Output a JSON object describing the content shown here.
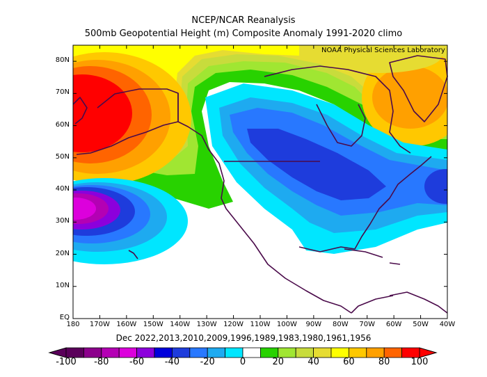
{
  "title": "NCEP/NCAR Reanalysis",
  "subtitle": "500mb Geopotential Height (m) Composite Anomaly 1991-2020 climo",
  "credit": "NOAA Physical Sciences Laboratory",
  "caption": "Dec 2022,2013,2010,2009,1996,1989,1983,1980,1961,1956",
  "lat_ticks": [
    "EQ",
    "10N",
    "20N",
    "30N",
    "40N",
    "50N",
    "60N",
    "70N",
    "80N"
  ],
  "lon_ticks": [
    "180",
    "170W",
    "160W",
    "150W",
    "140W",
    "130W",
    "120W",
    "110W",
    "100W",
    "90W",
    "80W",
    "70W",
    "60W",
    "50W",
    "40W"
  ],
  "colorbar": {
    "labels": [
      "-100",
      "-80",
      "-60",
      "-40",
      "-20",
      "0",
      "20",
      "40",
      "60",
      "80",
      "100"
    ],
    "colors": [
      "#5a005a",
      "#8c008c",
      "#b400b4",
      "#dc00dc",
      "#8c00dc",
      "#0000dc",
      "#1e3cdc",
      "#2878ff",
      "#1eaaf0",
      "#00e6ff",
      "#ffffff",
      "#28d200",
      "#a0e632",
      "#c8dc3c",
      "#e6dc32",
      "#ffff00",
      "#ffc800",
      "#ffa000",
      "#ff6400",
      "#ff0000"
    ]
  },
  "map_data": {
    "projection": "equirectangular",
    "lon_range": [
      "180",
      "40W"
    ],
    "lat_range": [
      "EQ",
      "85N"
    ],
    "field": "500mb geopotential height anomaly (m)",
    "features": [
      {
        "sign": "positive",
        "center": "65N 175W",
        "level": 100
      },
      {
        "sign": "negative",
        "center": "33N 175W",
        "level": -80
      },
      {
        "sign": "negative",
        "center": "50N 95W",
        "level": -40
      },
      {
        "sign": "negative",
        "center": "42N 40W",
        "level": -40
      },
      {
        "sign": "positive",
        "center": "70N 55W",
        "level": 60
      },
      {
        "sign": "positive",
        "center": "82N 70W",
        "level": 40
      }
    ]
  }
}
